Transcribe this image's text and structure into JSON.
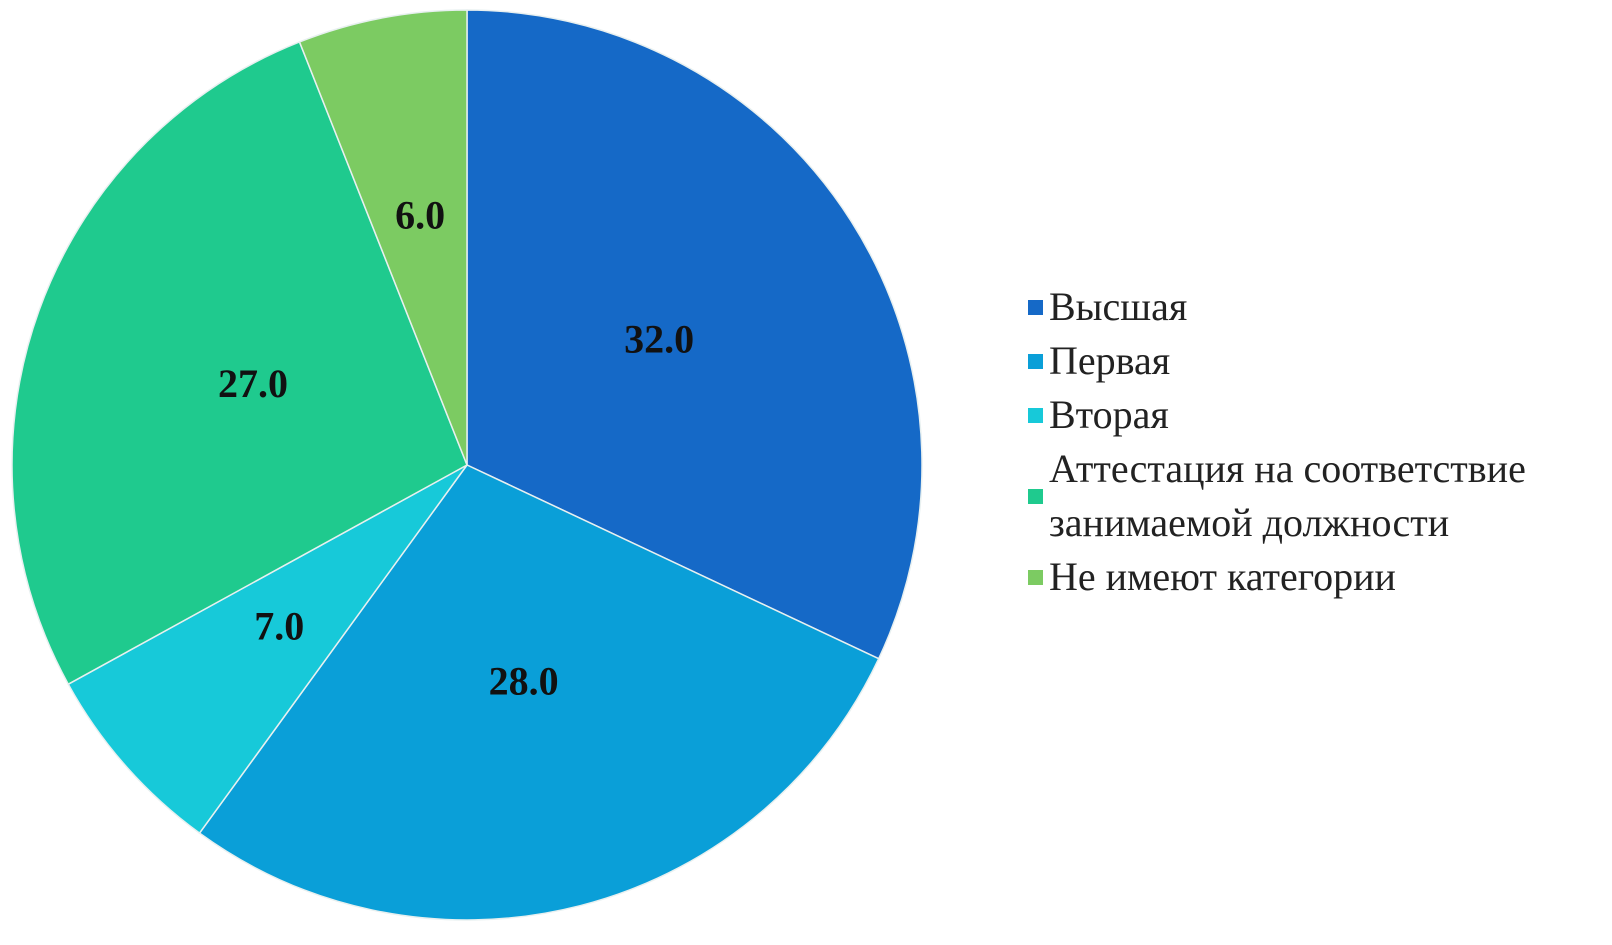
{
  "chart_data": {
    "type": "pie",
    "categories": [
      "Высшая",
      "Первая",
      "Вторая",
      "Аттестация на соответствие занимаемой должности",
      "Не имеют категории"
    ],
    "values": [
      32,
      28,
      7,
      27,
      6
    ],
    "value_labels": [
      "32.0",
      "28.0",
      "7.0",
      "27.0",
      "6.0"
    ],
    "colors": [
      "#1569c7",
      "#0a9fd8",
      "#17c9d9",
      "#1fca8e",
      "#7ccb62"
    ],
    "legend": "right"
  }
}
